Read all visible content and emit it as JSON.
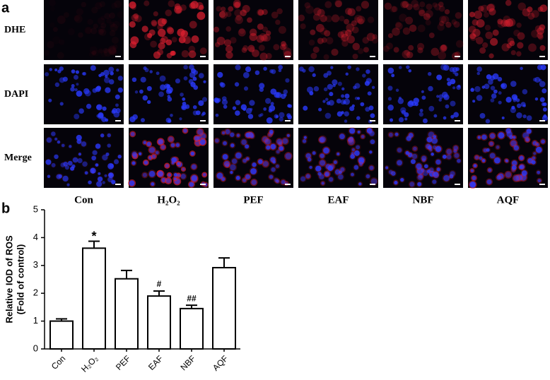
{
  "panel_a": {
    "label": "a",
    "row_labels": [
      "DHE",
      "DAPI",
      "Merge"
    ],
    "column_labels": [
      "Con",
      "H₂O₂",
      "PEF",
      "EAF",
      "NBF",
      "AQF"
    ]
  },
  "chart_data": {
    "type": "bar",
    "label": "b",
    "ylabel": [
      "Relative IOD of ROS",
      "(Fold of control)"
    ],
    "categories": [
      "Con",
      "H₂O₂",
      "PEF",
      "EAF",
      "NBF",
      "AQF"
    ],
    "values": [
      1.0,
      3.62,
      2.52,
      1.9,
      1.45,
      2.92
    ],
    "errors": [
      0.08,
      0.25,
      0.3,
      0.18,
      0.12,
      0.35
    ],
    "annotations": [
      null,
      "*",
      null,
      "#",
      "##",
      null
    ],
    "color": "#ffffff",
    "ylim": [
      0,
      5
    ],
    "yticks": [
      0,
      1,
      2,
      3,
      4,
      5
    ]
  }
}
